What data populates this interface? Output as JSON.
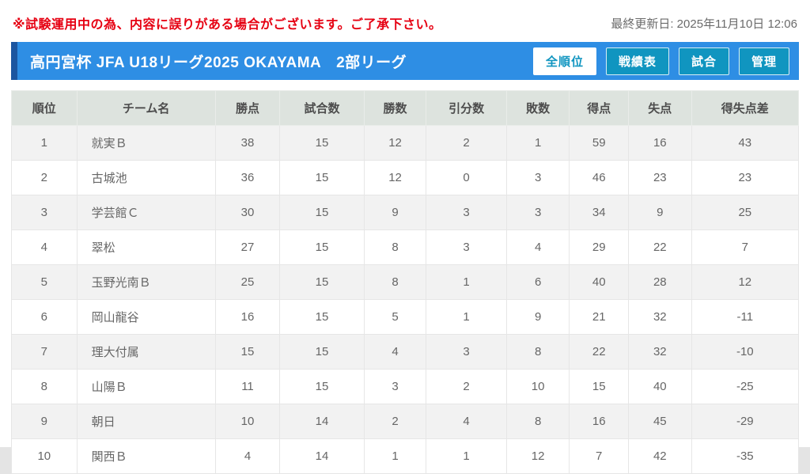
{
  "notice": "※試験運用中の為、内容に誤りがある場合がございます。ご了承下さい。",
  "last_updated": "最終更新日: 2025年11月10日 12:06",
  "header": {
    "title": "高円宮杯 JFA U18リーグ2025 OKAYAMA　2部リーグ",
    "tabs": [
      {
        "name": "tab-all-rankings",
        "label": "全順位",
        "active": true
      },
      {
        "name": "tab-results-grid",
        "label": "戦績表",
        "active": false
      },
      {
        "name": "tab-matches",
        "label": "試合",
        "active": false
      },
      {
        "name": "tab-admin",
        "label": "管理",
        "active": false
      }
    ]
  },
  "table": {
    "columns": [
      "順位",
      "チーム名",
      "勝点",
      "試合数",
      "勝数",
      "引分数",
      "敗数",
      "得点",
      "失点",
      "得失点差"
    ],
    "column_keys": [
      "rank",
      "team",
      "points",
      "played",
      "wins",
      "draws",
      "losses",
      "goals-for",
      "goals-against",
      "goal-diff"
    ],
    "rows": [
      [
        "1",
        "就実Ｂ",
        "38",
        "15",
        "12",
        "2",
        "1",
        "59",
        "16",
        "43"
      ],
      [
        "2",
        "古城池",
        "36",
        "15",
        "12",
        "0",
        "3",
        "46",
        "23",
        "23"
      ],
      [
        "3",
        "学芸館Ｃ",
        "30",
        "15",
        "9",
        "3",
        "3",
        "34",
        "9",
        "25"
      ],
      [
        "4",
        "翠松",
        "27",
        "15",
        "8",
        "3",
        "4",
        "29",
        "22",
        "7"
      ],
      [
        "5",
        "玉野光南Ｂ",
        "25",
        "15",
        "8",
        "1",
        "6",
        "40",
        "28",
        "12"
      ],
      [
        "6",
        "岡山龍谷",
        "16",
        "15",
        "5",
        "1",
        "9",
        "21",
        "32",
        "-11"
      ],
      [
        "7",
        "理大付属",
        "15",
        "15",
        "4",
        "3",
        "8",
        "22",
        "32",
        "-10"
      ],
      [
        "8",
        "山陽Ｂ",
        "11",
        "15",
        "3",
        "2",
        "10",
        "15",
        "40",
        "-25"
      ],
      [
        "9",
        "朝日",
        "10",
        "14",
        "2",
        "4",
        "8",
        "16",
        "45",
        "-29"
      ],
      [
        "10",
        "関西Ｂ",
        "4",
        "14",
        "1",
        "1",
        "12",
        "7",
        "42",
        "-35"
      ]
    ]
  },
  "colors": {
    "notice_red": "#e60012",
    "bar_blue": "#2e8ee4",
    "bar_accent_dark_blue": "#1c56a0",
    "button_teal": "#1095c0",
    "table_header_bg": "#dde3de",
    "row_stripe": "#f2f2f2"
  }
}
